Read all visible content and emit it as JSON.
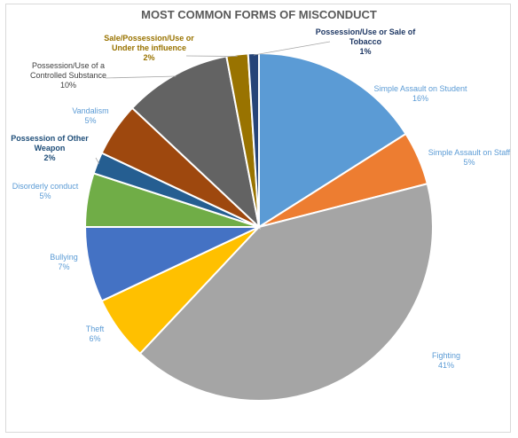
{
  "chart_data": {
    "type": "pie",
    "title": "MOST COMMON FORMS OF MISCONDUCT",
    "slices": [
      {
        "label": [
          "Simple Assault on Student"
        ],
        "pct_text": "16%",
        "value": 16,
        "color": "#5b9bd5",
        "label_color": "#5b9bd5",
        "bold": false
      },
      {
        "label": [
          "Simple Assault on Staff"
        ],
        "pct_text": "5%",
        "value": 5,
        "color": "#ed7d31",
        "label_color": "#5b9bd5",
        "bold": false
      },
      {
        "label": [
          "Fighting"
        ],
        "pct_text": "41%",
        "value": 41,
        "color": "#a5a5a5",
        "label_color": "#5b9bd5",
        "bold": false
      },
      {
        "label": [
          "Theft"
        ],
        "pct_text": "6%",
        "value": 6,
        "color": "#ffc000",
        "label_color": "#5b9bd5",
        "bold": false
      },
      {
        "label": [
          "Bullying"
        ],
        "pct_text": "7%",
        "value": 7,
        "color": "#4472c4",
        "label_color": "#5b9bd5",
        "bold": false
      },
      {
        "label": [
          "Disorderly conduct"
        ],
        "pct_text": "5%",
        "value": 5,
        "color": "#70ad47",
        "label_color": "#5b9bd5",
        "bold": false
      },
      {
        "label": [
          "Possession of Other",
          "Weapon"
        ],
        "pct_text": "2%",
        "value": 2,
        "color": "#255e91",
        "label_color": "#1f4e79",
        "bold": true
      },
      {
        "label": [
          "Vandalism"
        ],
        "pct_text": "5%",
        "value": 5,
        "color": "#9e480e",
        "label_color": "#5b9bd5",
        "bold": false
      },
      {
        "label": [
          "Possession/Use of a",
          "Controlled Substance"
        ],
        "pct_text": "10%",
        "value": 10,
        "color": "#636363",
        "label_color": "#404040",
        "bold": false
      },
      {
        "label": [
          "Sale/Possession/Use or",
          "Under the influence"
        ],
        "pct_text": "2%",
        "value": 2,
        "color": "#997300",
        "label_color": "#997300",
        "bold": true
      },
      {
        "label": [
          "Possession/Use or Sale of",
          "Tobacco"
        ],
        "pct_text": "1%",
        "value": 1,
        "color": "#264478",
        "label_color": "#1f3864",
        "bold": true
      }
    ]
  }
}
